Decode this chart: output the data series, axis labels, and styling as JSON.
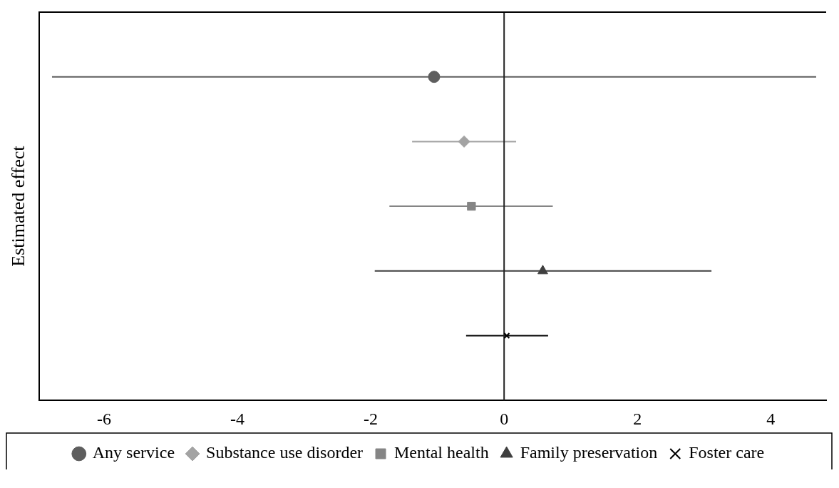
{
  "chart_data": {
    "type": "scatter",
    "orientation": "horizontal",
    "ylabel": "Estimated effect",
    "categories": [
      null,
      null,
      null,
      null,
      null
    ],
    "series": [
      {
        "name": "Any service",
        "color": "#5e5e5e",
        "marker": "circle",
        "values": [
          -1.05,
          null,
          null,
          null,
          null
        ],
        "errors": [
          [
            -6.78,
            4.68
          ],
          null,
          null,
          null,
          null
        ]
      },
      {
        "name": "Substance use disorder",
        "color": "#a3a3a3",
        "marker": "diamond",
        "values": [
          null,
          -0.6,
          null,
          null,
          null
        ],
        "errors": [
          null,
          [
            -1.38,
            0.18
          ],
          null,
          null,
          null
        ]
      },
      {
        "name": "Mental health",
        "color": "#858585",
        "marker": "square",
        "values": [
          null,
          null,
          -0.49,
          null,
          null
        ],
        "errors": [
          null,
          null,
          [
            -1.72,
            0.73
          ],
          null,
          null
        ]
      },
      {
        "name": "Family preservation",
        "color": "#3f3f3f",
        "marker": "triangle",
        "values": [
          null,
          null,
          null,
          0.58,
          null
        ],
        "errors": [
          null,
          null,
          null,
          [
            -1.94,
            3.11
          ],
          null
        ]
      },
      {
        "name": "Foster care",
        "color": "#000000",
        "marker": "cross",
        "values": [
          null,
          null,
          null,
          null,
          0.04
        ],
        "errors": [
          null,
          null,
          null,
          null,
          [
            -0.57,
            0.66
          ]
        ]
      }
    ],
    "xlim": [
      -6.97,
      4.83
    ],
    "xticks": [
      -6,
      -4,
      -2,
      0,
      2,
      4
    ],
    "ref_lines": [
      {
        "axis": "x",
        "value": 0,
        "color": "#222222"
      }
    ],
    "grid": false,
    "legend": "bottom",
    "tick_labels": "x"
  }
}
